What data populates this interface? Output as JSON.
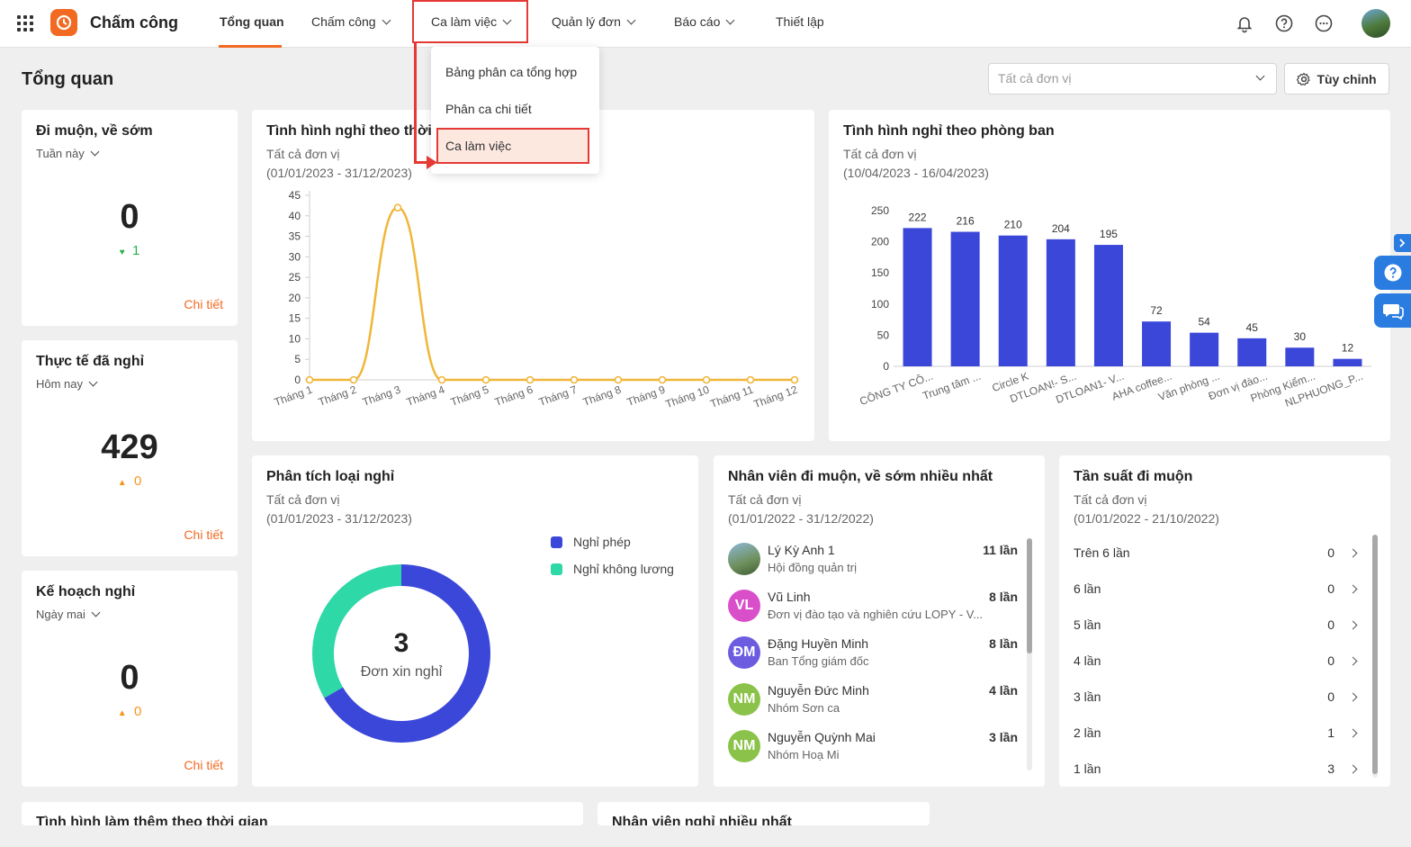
{
  "app": {
    "title": "Chấm công"
  },
  "nav": {
    "overview": "Tổng quan",
    "timekeeping": "Chấm công",
    "shifts": "Ca làm việc",
    "requests": "Quản lý đơn",
    "reports": "Báo cáo",
    "settings": "Thiết lập"
  },
  "dropdown": {
    "items": [
      "Bảng phân ca tổng hợp",
      "Phân ca chi tiết",
      "Ca làm việc"
    ]
  },
  "page": {
    "title": "Tổng quan",
    "unit_placeholder": "Tất cả đơn vị",
    "customize_label": "Tùy chỉnh"
  },
  "cards": {
    "late_early": {
      "title": "Đi muộn, về sớm",
      "period": "Tuần này",
      "value": "0",
      "delta": "1",
      "detail": "Chi tiết"
    },
    "actual_leave": {
      "title": "Thực tế đã nghỉ",
      "period": "Hôm nay",
      "value": "429",
      "delta": "0",
      "detail": "Chi tiết"
    },
    "planned_leave": {
      "title": "Kế hoạch nghỉ",
      "period": "Ngày mai",
      "value": "0",
      "delta": "0",
      "detail": "Chi tiết"
    },
    "leave_time": {
      "title": "Tình hình nghỉ theo thời",
      "unit": "Tất cả đơn vị",
      "range": "(01/01/2023 - 31/12/2023)"
    },
    "leave_dept": {
      "title": "Tình hình nghỉ theo phòng ban",
      "unit": "Tất cả đơn vị",
      "range": "(10/04/2023 - 16/04/2023)"
    },
    "leave_type": {
      "title": "Phân tích loại nghỉ",
      "unit": "Tất cả đơn vị",
      "range": "(01/01/2023 - 31/12/2023)",
      "total": "3",
      "total_label": "Đơn xin nghỉ"
    },
    "late_staff": {
      "title": "Nhân viên đi muộn, về sớm nhiều nhất",
      "unit": "Tất cả đơn vị",
      "range": "(01/01/2022 - 31/12/2022)"
    },
    "late_freq": {
      "title": "Tần suất đi muộn",
      "unit": "Tất cả đơn vị",
      "range": "(01/01/2022 - 21/10/2022)"
    },
    "overtime": {
      "title": "Tình hình làm thêm theo thời gian"
    },
    "most_leave": {
      "title": "Nhân viên nghỉ nhiều nhất"
    }
  },
  "employees": [
    {
      "name": "Lý Kỳ Anh 1",
      "dept": "Hội đồng quản trị",
      "count": "11 lần",
      "initials": "",
      "color": "#5a8a5a"
    },
    {
      "name": "Vũ Linh",
      "dept": "Đơn vị đào tạo và nghiên cứu LOPY - V...",
      "count": "8 lần",
      "initials": "VL",
      "color": "#d94fc9"
    },
    {
      "name": "Đặng Huyền Minh",
      "dept": "Ban Tổng giám đốc",
      "count": "8 lần",
      "initials": "ĐM",
      "color": "#6b5ce0"
    },
    {
      "name": "Nguyễn Đức Minh",
      "dept": "Nhóm Sơn ca",
      "count": "4 lần",
      "initials": "NM",
      "color": "#8bc34a"
    },
    {
      "name": "Nguyễn Quỳnh Mai",
      "dept": "Nhóm Hoạ Mi",
      "count": "3 lần",
      "initials": "NM",
      "color": "#8bc34a"
    }
  ],
  "frequency": [
    {
      "label": "Trên 6 lần",
      "count": "0"
    },
    {
      "label": "6 lần",
      "count": "0"
    },
    {
      "label": "5 lần",
      "count": "0"
    },
    {
      "label": "4 lần",
      "count": "0"
    },
    {
      "label": "3 lần",
      "count": "0"
    },
    {
      "label": "2 lần",
      "count": "1"
    },
    {
      "label": "1 lần",
      "count": "3"
    }
  ],
  "colors": {
    "accent": "#f26a21",
    "bar": "#3b47d9",
    "line": "#f0b63a",
    "teal": "#2ed8a7",
    "up": "#f7941d",
    "down": "#29b34a"
  },
  "chart_data": [
    {
      "type": "line",
      "categories": [
        "Tháng 1",
        "Tháng 2",
        "Tháng 3",
        "Tháng 4",
        "Tháng 5",
        "Tháng 6",
        "Tháng 7",
        "Tháng 8",
        "Tháng 9",
        "Tháng 10",
        "Tháng 11",
        "Tháng 12"
      ],
      "values": [
        0,
        0,
        42,
        0,
        0,
        0,
        0,
        0,
        0,
        0,
        0,
        0
      ],
      "ylim": [
        0,
        45
      ],
      "yticks": [
        0,
        5,
        10,
        15,
        20,
        25,
        30,
        35,
        40,
        45
      ]
    },
    {
      "type": "bar",
      "categories": [
        "CÔNG TY CÔ...",
        "Trung tâm ...",
        "Circle K",
        "DTLOAN!- S...",
        "DTLOAN1- V...",
        "AHA coffee...",
        "Văn phòng ...",
        "Đơn vị đào...",
        "Phòng Kiểm...",
        "NLPHUONG_P..."
      ],
      "values": [
        222,
        216,
        210,
        204,
        195,
        72,
        54,
        45,
        30,
        12
      ],
      "ylim": [
        0,
        250
      ],
      "yticks": [
        0,
        50,
        100,
        150,
        200,
        250
      ]
    },
    {
      "type": "pie",
      "series": [
        {
          "name": "Nghỉ phép",
          "value": 2,
          "color": "#3b47d9"
        },
        {
          "name": "Nghỉ không lương",
          "value": 1,
          "color": "#2ed8a7"
        }
      ]
    }
  ]
}
